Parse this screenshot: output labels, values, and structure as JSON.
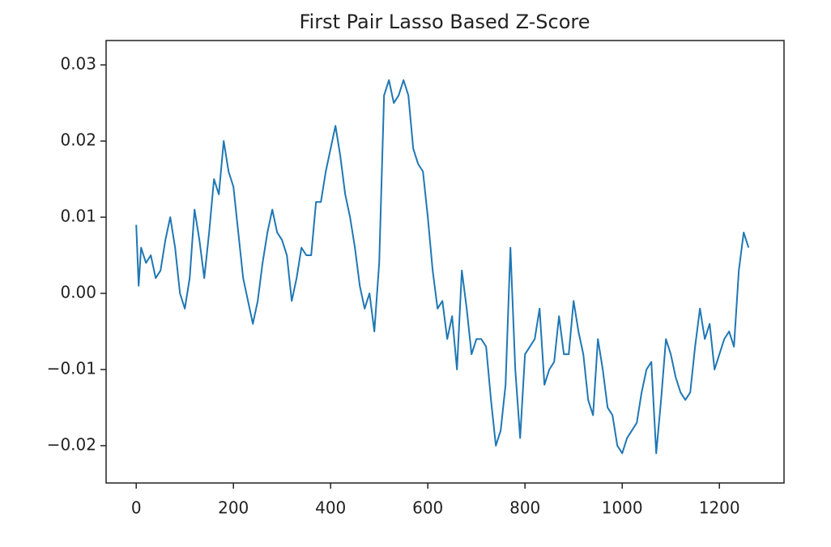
{
  "chart_data": {
    "type": "line",
    "title": "First Pair Lasso Based Z-Score",
    "x": [
      0,
      5,
      10,
      20,
      30,
      40,
      50,
      60,
      70,
      80,
      90,
      100,
      110,
      120,
      130,
      140,
      150,
      160,
      170,
      180,
      190,
      200,
      210,
      220,
      230,
      240,
      250,
      260,
      270,
      280,
      290,
      300,
      310,
      320,
      330,
      340,
      350,
      360,
      370,
      380,
      390,
      400,
      410,
      420,
      430,
      440,
      450,
      460,
      470,
      480,
      490,
      500,
      510,
      520,
      530,
      540,
      550,
      560,
      570,
      580,
      590,
      600,
      610,
      620,
      630,
      640,
      650,
      660,
      670,
      680,
      690,
      700,
      710,
      720,
      730,
      740,
      750,
      760,
      770,
      780,
      790,
      800,
      810,
      820,
      830,
      840,
      850,
      860,
      870,
      880,
      890,
      900,
      910,
      920,
      930,
      940,
      950,
      960,
      970,
      980,
      990,
      1000,
      1010,
      1020,
      1030,
      1040,
      1050,
      1060,
      1070,
      1080,
      1090,
      1100,
      1110,
      1120,
      1130,
      1140,
      1150,
      1160,
      1170,
      1180,
      1190,
      1200,
      1210,
      1220,
      1230,
      1240,
      1250,
      1260
    ],
    "series": [
      {
        "name": "z-score",
        "color": "#1f77b4",
        "values": [
          0.009,
          0.001,
          0.006,
          0.004,
          0.005,
          0.002,
          0.003,
          0.007,
          0.01,
          0.006,
          0.0,
          -0.002,
          0.002,
          0.011,
          0.007,
          0.002,
          0.008,
          0.015,
          0.013,
          0.02,
          0.016,
          0.014,
          0.008,
          0.002,
          -0.001,
          -0.004,
          -0.001,
          0.004,
          0.008,
          0.011,
          0.008,
          0.007,
          0.005,
          -0.001,
          0.002,
          0.006,
          0.005,
          0.005,
          0.012,
          0.012,
          0.016,
          0.019,
          0.022,
          0.018,
          0.013,
          0.01,
          0.006,
          0.001,
          -0.002,
          0.0,
          -0.005,
          0.004,
          0.026,
          0.028,
          0.025,
          0.026,
          0.028,
          0.026,
          0.019,
          0.017,
          0.016,
          0.01,
          0.003,
          -0.002,
          -0.001,
          -0.006,
          -0.003,
          -0.01,
          0.003,
          -0.002,
          -0.008,
          -0.006,
          -0.006,
          -0.007,
          -0.014,
          -0.02,
          -0.018,
          -0.012,
          0.006,
          -0.01,
          -0.019,
          -0.008,
          -0.007,
          -0.006,
          -0.002,
          -0.012,
          -0.01,
          -0.009,
          -0.003,
          -0.008,
          -0.008,
          -0.001,
          -0.005,
          -0.008,
          -0.014,
          -0.016,
          -0.006,
          -0.01,
          -0.015,
          -0.016,
          -0.02,
          -0.021,
          -0.019,
          -0.018,
          -0.017,
          -0.013,
          -0.01,
          -0.009,
          -0.021,
          -0.014,
          -0.006,
          -0.008,
          -0.011,
          -0.013,
          -0.014,
          -0.013,
          -0.007,
          -0.002,
          -0.006,
          -0.004,
          -0.01,
          -0.008,
          -0.006,
          -0.005,
          -0.007,
          0.003,
          0.008,
          0.006
        ]
      }
    ],
    "xlim": [
      -62,
      1333
    ],
    "ylim": [
      -0.0249,
      0.0332
    ],
    "xticks": [
      0,
      200,
      400,
      600,
      800,
      1000,
      1200
    ],
    "yticks": [
      {
        "value": -0.02,
        "label": "−0.02"
      },
      {
        "value": -0.01,
        "label": "−0.01"
      },
      {
        "value": 0,
        "label": "0.00"
      },
      0.01,
      0.02,
      0.03
    ]
  }
}
